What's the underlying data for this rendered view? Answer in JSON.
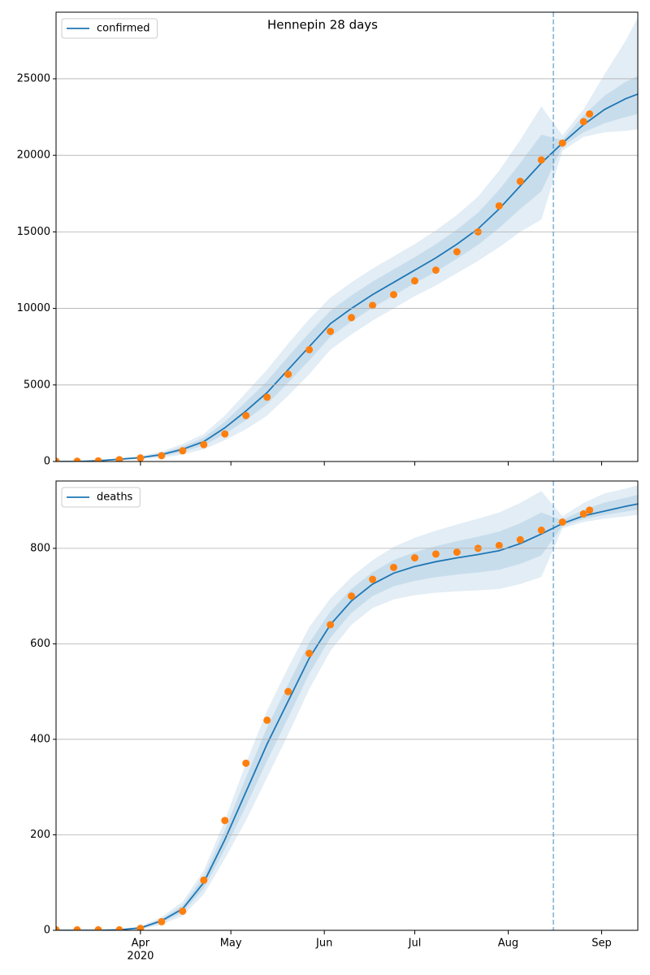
{
  "chart_data": [
    {
      "type": "line",
      "title": "Hennepin 28 days",
      "x": [
        "2020-03-04",
        "2020-03-11",
        "2020-03-18",
        "2020-03-25",
        "2020-04-01",
        "2020-04-08",
        "2020-04-15",
        "2020-04-22",
        "2020-04-29",
        "2020-05-06",
        "2020-05-13",
        "2020-05-20",
        "2020-05-27",
        "2020-06-03",
        "2020-06-10",
        "2020-06-17",
        "2020-06-24",
        "2020-07-01",
        "2020-07-08",
        "2020-07-15",
        "2020-07-22",
        "2020-07-29",
        "2020-08-05",
        "2020-08-12",
        "2020-08-19",
        "2020-08-26",
        "2020-09-02",
        "2020-09-09",
        "2020-09-13"
      ],
      "series": [
        {
          "name": "confirmed",
          "color": "#1f77b4",
          "values": [
            0,
            0,
            50,
            150,
            250,
            450,
            800,
            1300,
            2200,
            3300,
            4500,
            6000,
            7500,
            9000,
            10000,
            10900,
            11700,
            12500,
            13300,
            14200,
            15200,
            16500,
            18000,
            19500,
            20800,
            22000,
            23000,
            23700,
            24000
          ]
        }
      ],
      "bands": [
        {
          "upper": [
            0,
            0,
            70,
            200,
            350,
            650,
            1150,
            1800,
            3000,
            4500,
            6000,
            7700,
            9300,
            10700,
            11700,
            12600,
            13400,
            14200,
            15100,
            16100,
            17300,
            19000,
            21000,
            23200,
            21300,
            23000,
            25300,
            27500,
            29000
          ],
          "lower": [
            0,
            0,
            30,
            100,
            150,
            250,
            450,
            800,
            1400,
            2100,
            3000,
            4300,
            5700,
            7300,
            8300,
            9200,
            10000,
            10800,
            11500,
            12300,
            13100,
            14000,
            15000,
            15800,
            20300,
            21200,
            21500,
            21600,
            21700
          ]
        },
        {
          "upper": [
            0,
            0,
            60,
            175,
            300,
            550,
            975,
            1550,
            2600,
            3900,
            5250,
            6850,
            8400,
            9850,
            10850,
            11750,
            12550,
            13350,
            14200,
            15150,
            16250,
            17750,
            19500,
            21350,
            21000,
            22600,
            23900,
            24800,
            25200
          ],
          "lower": [
            0,
            0,
            40,
            125,
            200,
            350,
            625,
            1050,
            1800,
            2700,
            3750,
            5150,
            6600,
            8150,
            9150,
            10050,
            10850,
            11650,
            12400,
            13250,
            14150,
            15250,
            16500,
            17650,
            20600,
            21500,
            22100,
            22500,
            22700
          ]
        }
      ],
      "band_color": "#1f77b4",
      "observed": {
        "color": "#ff7f0e",
        "x": [
          "2020-03-04",
          "2020-03-11",
          "2020-03-18",
          "2020-03-25",
          "2020-04-01",
          "2020-04-08",
          "2020-04-15",
          "2020-04-22",
          "2020-04-29",
          "2020-05-06",
          "2020-05-13",
          "2020-05-20",
          "2020-05-27",
          "2020-06-03",
          "2020-06-10",
          "2020-06-17",
          "2020-06-24",
          "2020-07-01",
          "2020-07-08",
          "2020-07-15",
          "2020-07-22",
          "2020-07-29",
          "2020-08-05",
          "2020-08-12",
          "2020-08-19",
          "2020-08-26",
          "2020-08-28"
        ],
        "values": [
          10,
          20,
          40,
          120,
          230,
          380,
          700,
          1100,
          1800,
          3000,
          4200,
          5700,
          7300,
          8500,
          9400,
          10200,
          10900,
          11800,
          12500,
          13700,
          15000,
          16700,
          18300,
          19700,
          20800,
          22200,
          22700
        ]
      },
      "vline": "2020-08-16",
      "xlim": [
        "2020-03-04",
        "2020-09-13"
      ],
      "xticks": [
        "2020-04-01",
        "2020-05-01",
        "2020-06-01",
        "2020-07-01",
        "2020-08-01",
        "2020-09-01"
      ],
      "ylim": [
        0,
        29350
      ],
      "yticks": [
        0,
        5000,
        10000,
        15000,
        20000,
        25000
      ],
      "grid": true,
      "legend": "upper left"
    },
    {
      "type": "line",
      "x": [
        "2020-03-04",
        "2020-03-11",
        "2020-03-18",
        "2020-03-25",
        "2020-04-01",
        "2020-04-08",
        "2020-04-15",
        "2020-04-22",
        "2020-04-29",
        "2020-05-06",
        "2020-05-13",
        "2020-05-20",
        "2020-05-27",
        "2020-06-03",
        "2020-06-10",
        "2020-06-17",
        "2020-06-24",
        "2020-07-01",
        "2020-07-08",
        "2020-07-15",
        "2020-07-22",
        "2020-07-29",
        "2020-08-05",
        "2020-08-12",
        "2020-08-19",
        "2020-08-26",
        "2020-09-02",
        "2020-09-09",
        "2020-09-13"
      ],
      "series": [
        {
          "name": "deaths",
          "color": "#1f77b4",
          "values": [
            0,
            0,
            0,
            1,
            5,
            20,
            45,
            100,
            190,
            290,
            390,
            480,
            570,
            640,
            690,
            725,
            748,
            762,
            772,
            780,
            787,
            795,
            810,
            830,
            852,
            868,
            878,
            888,
            893
          ]
        }
      ],
      "bands": [
        {
          "upper": [
            0,
            0,
            0,
            2,
            8,
            28,
            60,
            125,
            230,
            350,
            460,
            550,
            635,
            695,
            740,
            775,
            803,
            822,
            837,
            850,
            862,
            875,
            895,
            920,
            867,
            895,
            915,
            925,
            932
          ],
          "lower": [
            0,
            0,
            0,
            0,
            2,
            12,
            30,
            75,
            150,
            230,
            320,
            410,
            505,
            585,
            640,
            675,
            693,
            702,
            707,
            710,
            712,
            715,
            725,
            740,
            842,
            855,
            862,
            867,
            870
          ]
        },
        {
          "upper": [
            0,
            0,
            0,
            1.5,
            6.5,
            24,
            52.5,
            112.5,
            210,
            320,
            425,
            515,
            602.5,
            667.5,
            715,
            750,
            775.5,
            792,
            804.5,
            815,
            824.5,
            835,
            852.5,
            875,
            859,
            881,
            896,
            906,
            912
          ],
          "lower": [
            0,
            0,
            0,
            0.5,
            3.5,
            16,
            37.5,
            87.5,
            170,
            260,
            355,
            445,
            537.5,
            612.5,
            665,
            700,
            720.5,
            732,
            739.5,
            745,
            749.5,
            755,
            767.5,
            785,
            847,
            861,
            870,
            877,
            881
          ]
        }
      ],
      "band_color": "#1f77b4",
      "observed": {
        "color": "#ff7f0e",
        "x": [
          "2020-03-04",
          "2020-03-11",
          "2020-03-18",
          "2020-03-25",
          "2020-04-01",
          "2020-04-08",
          "2020-04-15",
          "2020-04-22",
          "2020-04-29",
          "2020-05-06",
          "2020-05-13",
          "2020-05-20",
          "2020-05-27",
          "2020-06-03",
          "2020-06-10",
          "2020-06-17",
          "2020-06-24",
          "2020-07-01",
          "2020-07-08",
          "2020-07-15",
          "2020-07-22",
          "2020-07-29",
          "2020-08-05",
          "2020-08-12",
          "2020-08-19",
          "2020-08-26",
          "2020-08-28"
        ],
        "values": [
          1,
          1,
          1,
          1,
          4,
          18,
          40,
          105,
          230,
          350,
          440,
          500,
          580,
          640,
          700,
          735,
          760,
          780,
          788,
          792,
          800,
          806,
          818,
          838,
          855,
          872,
          880
        ]
      },
      "vline": "2020-08-16",
      "xlim": [
        "2020-03-04",
        "2020-09-13"
      ],
      "xticks": [
        {
          "value": "2020-04-01",
          "label": "Apr",
          "sublabel": "2020"
        },
        {
          "value": "2020-05-01",
          "label": "May"
        },
        {
          "value": "2020-06-01",
          "label": "Jun"
        },
        {
          "value": "2020-07-01",
          "label": "Jul"
        },
        {
          "value": "2020-08-01",
          "label": "Aug"
        },
        {
          "value": "2020-09-01",
          "label": "Sep"
        }
      ],
      "ylim": [
        0,
        941
      ],
      "yticks": [
        0,
        200,
        400,
        600,
        800
      ],
      "grid": true,
      "legend": "upper left"
    }
  ]
}
